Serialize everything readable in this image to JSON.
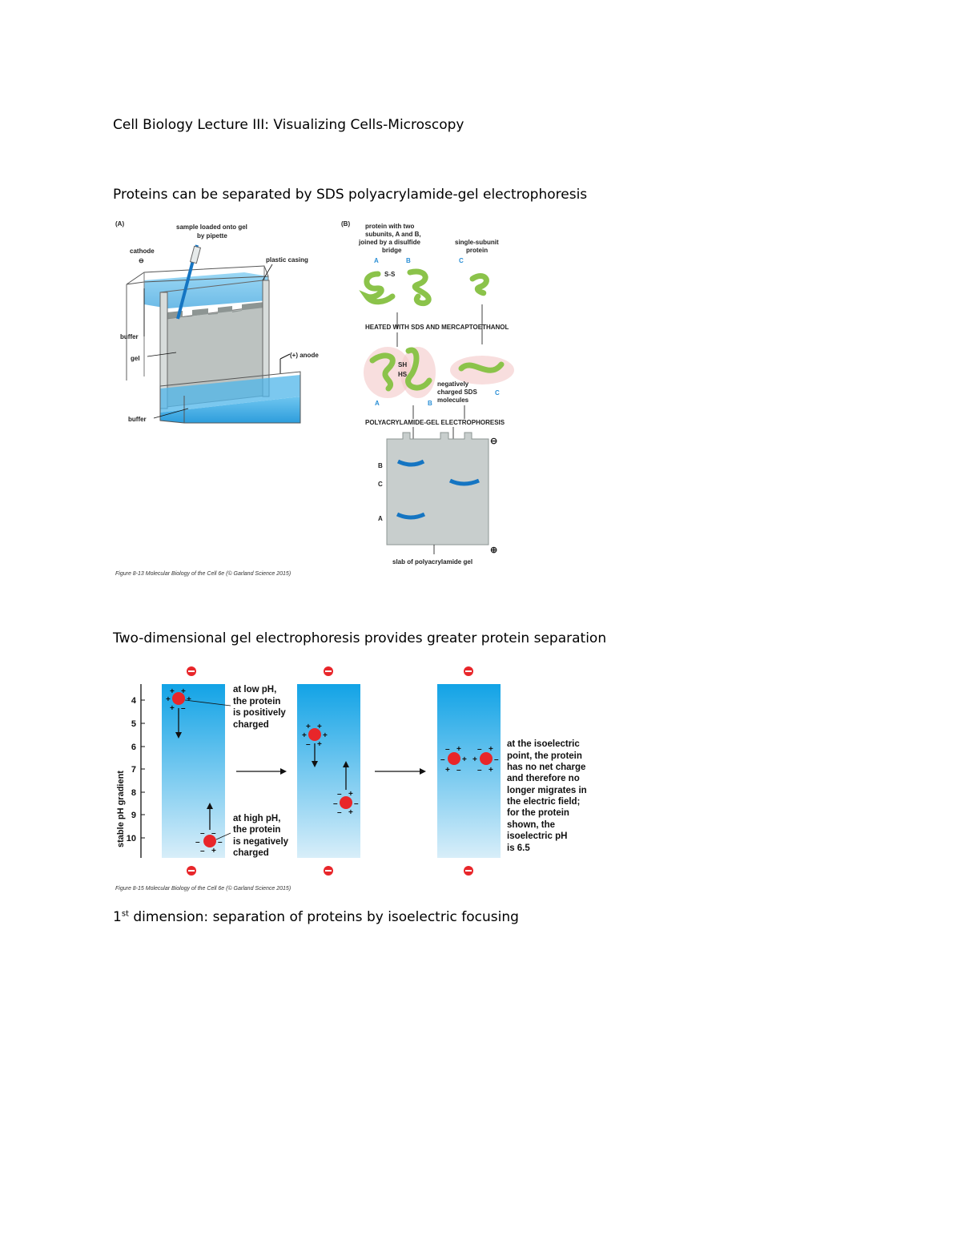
{
  "document": {
    "title": "Cell Biology Lecture III: Visualizing Cells-Microscopy",
    "section1_heading": "Proteins can be separated by SDS polyacrylamide-gel electrophoresis",
    "section2_heading": "Two-dimensional gel electrophoresis provides greater protein separation",
    "section3_prefix": "1",
    "section3_sup": "st",
    "section3_rest": " dimension: separation of proteins by isoelectric focusing"
  },
  "figure1": {
    "panel_a": {
      "tag": "(A)",
      "sample": "sample loaded onto gel",
      "sample2": "by pipette",
      "cathode": "cathode",
      "cathode_sign": "⊖",
      "plastic": "plastic casing",
      "buffer_top": "buffer",
      "gel": "gel",
      "anode": "(+) anode",
      "buffer_bottom": "buffer"
    },
    "panel_b": {
      "tag": "(B)",
      "two_subunit_l1": "protein with two",
      "two_subunit_l2": "subunits, A and B,",
      "two_subunit_l3": "joined by a disulfide",
      "two_subunit_l4": "bridge",
      "single_l1": "single-subunit",
      "single_l2": "protein",
      "A": "A",
      "B": "B",
      "C": "C",
      "ss": "S-S",
      "heated": "HEATED WITH SDS AND MERCAPTOETHANOL",
      "sh": "SH",
      "hs": "HS",
      "neg_l1": "negatively",
      "neg_l2": "charged SDS",
      "neg_l3": "molecules",
      "page": "POLYACRYLAMIDE-GEL ELECTROPHORESIS",
      "slab": "slab of polyacrylamide gel",
      "minus": "⊖",
      "plus": "⊕"
    },
    "caption": "Figure 8-13 Molecular Biology of the Cell 6e (© Garland Science 2015)"
  },
  "figure2": {
    "axis_label": "stable pH gradient",
    "ticks": [
      "4",
      "5",
      "6",
      "7",
      "8",
      "9",
      "10"
    ],
    "ann_low": [
      "at low pH,",
      "the protein",
      "is positively",
      "charged"
    ],
    "ann_high": [
      "at high pH,",
      "the protein",
      "is negatively",
      "charged"
    ],
    "ann_iso": [
      "at the isoelectric",
      "point, the protein",
      "has no net charge",
      "and therefore no",
      "longer migrates in",
      "the electric field;",
      "for the protein",
      "shown, the",
      "isoelectric pH",
      "is 6.5"
    ],
    "caption": "Figure 8-15 Molecular Biology of the Cell 6e (© Garland Science 2015)",
    "colors": {
      "gel_top": "#12a3e6",
      "gel_bottom": "#d8eef9",
      "protein": "#e8262a"
    }
  }
}
